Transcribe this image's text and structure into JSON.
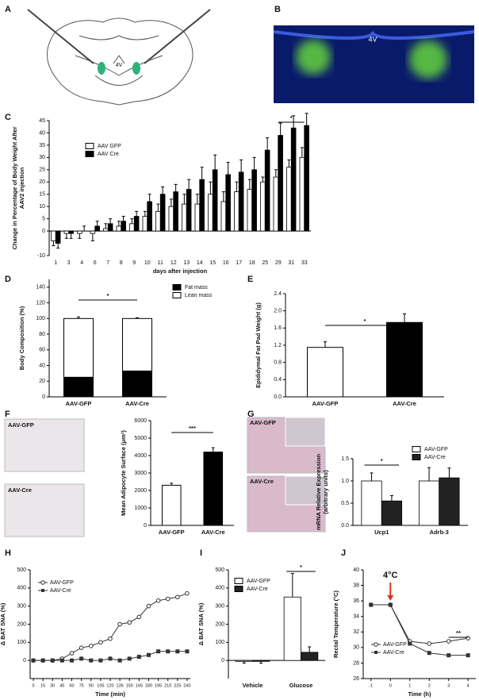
{
  "figure": {
    "panel_a": {
      "letter": "A",
      "label": "4V"
    },
    "panel_b": {
      "letter": "B",
      "label": "4V"
    },
    "f_images": [
      "AAV-GFP",
      "AAV-Cre"
    ],
    "g_images": [
      "AAV-GFP",
      "AAV-Cre"
    ]
  },
  "chart_data": [
    {
      "type": "bar",
      "panel": "C",
      "ylabel": [
        "Change in Percentage of Body Weight After",
        "AAV2 injection"
      ],
      "xlabel": "days after injection",
      "categories": [
        "1",
        "3",
        "4",
        "6",
        "7",
        "8",
        "9",
        "10",
        "11",
        "12",
        "13",
        "14",
        "15",
        "16",
        "17",
        "18",
        "25",
        "29",
        "31",
        "33"
      ],
      "series": [
        {
          "name": "AAV GFP",
          "color": "#ffffff",
          "values": [
            -4,
            -1,
            -1,
            -1,
            1,
            2,
            3,
            6,
            8,
            10,
            11,
            11,
            15,
            12,
            16,
            17,
            20,
            22,
            26,
            30
          ],
          "errors": [
            2,
            2,
            2,
            3,
            2,
            2,
            2,
            2,
            3,
            3,
            4,
            4,
            5,
            4,
            4,
            4,
            2,
            3,
            3,
            4
          ]
        },
        {
          "name": "AAV Cre",
          "color": "#000000",
          "values": [
            -5,
            -1,
            0,
            2,
            3,
            4,
            6,
            12,
            15,
            16,
            17,
            21,
            25,
            23,
            24,
            25,
            33,
            39,
            42,
            43
          ],
          "errors": [
            2,
            2,
            2,
            2,
            2,
            2,
            2,
            3,
            3,
            3,
            4,
            5,
            6,
            5,
            5,
            5,
            5,
            5,
            5,
            5
          ]
        }
      ],
      "ylim": [
        -10,
        45
      ],
      "yticks": [
        -10,
        0,
        5,
        10,
        15,
        20,
        25,
        30,
        35,
        40,
        45
      ],
      "legend": "upper-left",
      "annotations": [
        {
          "text": "*"
        }
      ]
    },
    {
      "type": "stacked_bar",
      "panel": "D",
      "ylabel": [
        "Body Composition (%)"
      ],
      "categories": [
        "AAV-GFP",
        "AAV-Cre"
      ],
      "series": [
        {
          "name": "Fat mass",
          "color": "#000000",
          "values": [
            25,
            33
          ],
          "errors": [
            1,
            1
          ]
        },
        {
          "name": "Lean mass",
          "color": "#ffffff",
          "values": [
            75,
            67
          ],
          "errors": [
            2,
            1
          ]
        }
      ],
      "ylim": [
        0,
        150
      ],
      "yticks": [
        0,
        20,
        40,
        60,
        80,
        100,
        120,
        140
      ],
      "legend": "upper-right",
      "annotations": [
        {
          "text": "*"
        }
      ]
    },
    {
      "type": "bar",
      "panel": "E",
      "ylabel": [
        "Epididymal Fat Pad  Weight (g)"
      ],
      "categories": [
        "AAV-GFP",
        "AAV-Cre"
      ],
      "values": [
        1.15,
        1.73
      ],
      "errors": [
        0.13,
        0.2
      ],
      "colors": [
        "#ffffff",
        "#000000"
      ],
      "ylim": [
        0,
        2.4
      ],
      "yticks": [
        {
          "value": 0,
          "label": "0.0"
        },
        0.4,
        0.8,
        1.2,
        1.6,
        {
          "value": 2,
          "label": "2.0"
        },
        2.4
      ],
      "annotations": [
        {
          "text": "*"
        }
      ]
    },
    {
      "type": "bar",
      "panel": "F",
      "ylabel": [
        "Mean Adipocyte Surface (μm²)"
      ],
      "categories": [
        "AAV-GFP",
        "AAV-Cre"
      ],
      "values": [
        2300,
        4200
      ],
      "errors": [
        120,
        250
      ],
      "colors": [
        "#ffffff",
        "#000000"
      ],
      "ylim": [
        0,
        6000
      ],
      "yticks": [
        0,
        1000,
        2000,
        3000,
        4000,
        5000,
        6000
      ],
      "annotations": [
        {
          "text": "***"
        }
      ]
    },
    {
      "type": "bar",
      "panel": "G",
      "ylabel": [
        "mRNA Relative Expression",
        "(arbitrary units)"
      ],
      "categories": [
        "Ucp1",
        "Adrb-3"
      ],
      "series": [
        {
          "name": "AAV-GFP",
          "color": "#ffffff",
          "values": [
            1.0,
            1.0
          ],
          "errors": [
            0.18,
            0.3
          ]
        },
        {
          "name": "AAV-Cre",
          "color": "#222222",
          "values": [
            0.55,
            1.07
          ],
          "errors": [
            0.12,
            0.22
          ]
        }
      ],
      "ylim": [
        0,
        1.5
      ],
      "yticks": [
        {
          "value": 0,
          "label": "0.0"
        },
        0.5,
        {
          "value": 1,
          "label": "1.0"
        },
        1.5
      ],
      "legend": "upper-right",
      "annotations": [
        {
          "text": "*"
        }
      ]
    },
    {
      "type": "line",
      "panel": "H",
      "ylabel": [
        "Δ BAT SNA (%)"
      ],
      "xlabel": "Time (min)",
      "x": [
        0,
        15,
        30,
        45,
        60,
        75,
        90,
        105,
        120,
        135,
        150,
        165,
        180,
        195,
        210,
        225,
        240
      ],
      "series": [
        {
          "name": "AAV-GFP",
          "color": "#333333",
          "marker": "circle",
          "values": [
            0,
            0,
            0,
            10,
            40,
            70,
            80,
            100,
            120,
            200,
            210,
            240,
            300,
            330,
            340,
            350,
            370
          ]
        },
        {
          "name": "AAV-Cre",
          "color": "#333333",
          "marker": "square",
          "values": [
            0,
            0,
            0,
            0,
            0,
            10,
            0,
            0,
            10,
            0,
            10,
            20,
            30,
            50,
            50,
            50,
            50
          ]
        }
      ],
      "xlim": [
        -5,
        245
      ],
      "xticks": [
        0,
        15,
        30,
        45,
        60,
        75,
        90,
        105,
        120,
        135,
        150,
        165,
        180,
        195,
        210,
        225,
        240
      ],
      "ylim": [
        -100,
        500
      ],
      "yticks": [
        0,
        100,
        200,
        300,
        400,
        500
      ],
      "legend": "upper-left"
    },
    {
      "type": "bar",
      "panel": "I",
      "ylabel": [
        "Δ BAT SNA (%)"
      ],
      "categories": [
        "Vehicle",
        "Glucose"
      ],
      "series": [
        {
          "name": "AAV-GFP",
          "color": "#ffffff",
          "values": [
            -5,
            350
          ],
          "errors": [
            10,
            130
          ]
        },
        {
          "name": "AAV-Cre",
          "color": "#222222",
          "values": [
            -5,
            45
          ],
          "errors": [
            10,
            30
          ]
        }
      ],
      "ylim": [
        -100,
        500
      ],
      "yticks": [
        0,
        100,
        200,
        300,
        400,
        500
      ],
      "legend": "upper-left",
      "annotations": [
        {
          "text": "*"
        }
      ]
    },
    {
      "type": "line",
      "panel": "J",
      "ylabel": [
        "Rectal Temperature (°C)"
      ],
      "xlabel": "Time (h)",
      "x": [
        -1,
        0,
        1,
        2,
        3,
        4
      ],
      "series": [
        {
          "name": "AAV-GFP",
          "color": "#333333",
          "marker": "circle",
          "values": [
            35.5,
            35.5,
            30.8,
            30.5,
            30.8,
            31.2
          ]
        },
        {
          "name": "AAV-Cre",
          "color": "#333333",
          "marker": "square",
          "values": [
            35.5,
            35.5,
            30.5,
            29.3,
            29.0,
            29.0
          ]
        }
      ],
      "xlim": [
        -1.4,
        4.4
      ],
      "xticks": [
        -1,
        0,
        1,
        2,
        3,
        4
      ],
      "ylim": [
        26,
        40
      ],
      "yticks": [
        26,
        28,
        30,
        32,
        34,
        36,
        38,
        40
      ],
      "legend": "lower-left",
      "annotations": [
        {
          "text": "4°C"
        },
        {
          "text": "**"
        }
      ]
    }
  ]
}
